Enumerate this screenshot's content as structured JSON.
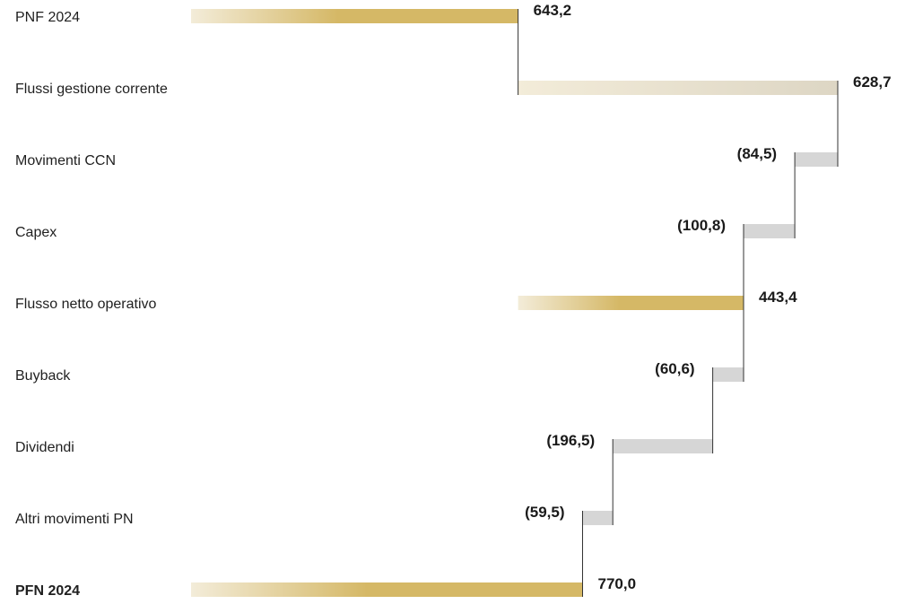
{
  "chart_data": {
    "type": "bar",
    "subtype": "horizontal-waterfall",
    "categories": [
      "PNF 2024",
      "Flussi gestione corrente",
      "Movimenti CCN",
      "Capex",
      "Flusso netto operativo",
      "Buyback",
      "Dividendi",
      "Altri movimenti PN",
      "PFN 2024"
    ],
    "bold_categories": [
      "PFN 2024"
    ],
    "series": [
      {
        "values": [
          643.2,
          628.7,
          -84.5,
          -100.8,
          443.4,
          -60.6,
          -196.5,
          -59.5,
          770.0
        ],
        "value_labels": [
          "643,2",
          "628,7",
          "(84,5)",
          "(100,8)",
          "443,4",
          "(60,6)",
          "(196,5)",
          "(59,5)",
          "770,0"
        ],
        "kinds": [
          "total",
          "increase",
          "decrease",
          "decrease",
          "total",
          "decrease",
          "decrease",
          "decrease",
          "total"
        ]
      }
    ],
    "xlim": [
      -643.2,
      628.7
    ],
    "colors": {
      "total": "#d5b866",
      "increase": "#ddd6c4",
      "decrease": "#d6d6d6",
      "gradient_start": "#f3ecd9"
    },
    "grid": false,
    "legend": "none",
    "title": "",
    "xlabel": "",
    "ylabel": ""
  }
}
